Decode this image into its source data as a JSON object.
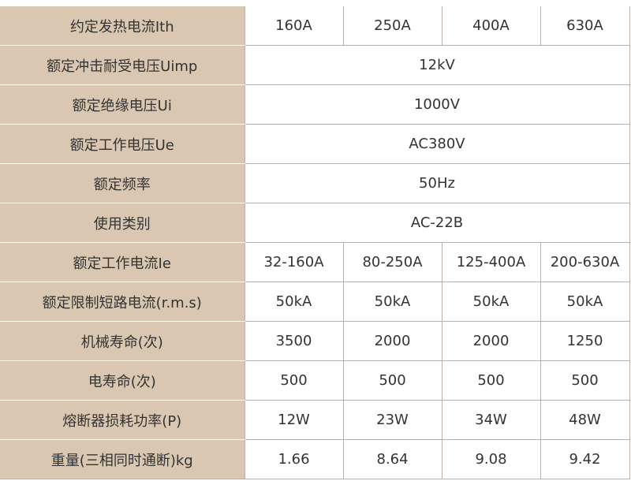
{
  "table": {
    "rows": [
      {
        "label": "约定发热电流Ith",
        "values": [
          "160A",
          "250A",
          "400A",
          "630A"
        ]
      },
      {
        "label": "额定冲击耐受电压Uimp",
        "values": [
          "12kV"
        ]
      },
      {
        "label": "额定绝缘电压Ui",
        "values": [
          "1000V"
        ]
      },
      {
        "label": "额定工作电压Ue",
        "values": [
          "AC380V"
        ]
      },
      {
        "label": "额定频率",
        "values": [
          "50Hz"
        ]
      },
      {
        "label": "使用类别",
        "values": [
          "AC-22B"
        ]
      },
      {
        "label": "额定工作电流Ie",
        "values": [
          "32-160A",
          "80-250A",
          "125-400A",
          "200-630A"
        ]
      },
      {
        "label": "额定限制短路电流(r.m.s)",
        "values": [
          "50kA",
          "50kA",
          "50kA",
          "50kA"
        ]
      },
      {
        "label": "机械寿命(次)",
        "values": [
          "3500",
          "2000",
          "2000",
          "1250"
        ]
      },
      {
        "label": "电寿命(次)",
        "values": [
          "500",
          "500",
          "500",
          "500"
        ]
      },
      {
        "label": "熔断器损耗功率(P)",
        "values": [
          "12W",
          "23W",
          "34W",
          "48W"
        ]
      },
      {
        "label": "重量(三相同时通断)kg",
        "values": [
          "1.66",
          "8.64",
          "9.08",
          "9.42"
        ]
      }
    ]
  }
}
